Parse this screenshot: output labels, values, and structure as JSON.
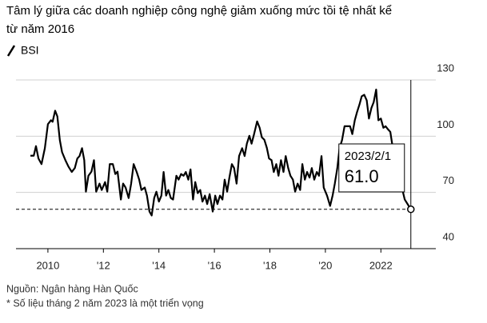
{
  "chart_data": {
    "type": "line",
    "title": [
      "Tâm lý giữa các doanh nghiệp công nghệ giảm xuống mức tồi tệ nhất kể",
      "từ năm 2016"
    ],
    "x": [
      2009.37,
      2009.49,
      2009.57,
      2009.66,
      2009.77,
      2009.89,
      2010.0,
      2010.11,
      2010.17,
      2010.26,
      2010.34,
      2010.43,
      2010.51,
      2010.63,
      2010.74,
      2010.86,
      2010.97,
      2011.06,
      2011.14,
      2011.23,
      2011.31,
      2011.37,
      2011.46,
      2011.57,
      2011.66,
      2011.74,
      2011.86,
      2011.94,
      2012.06,
      2012.14,
      2012.23,
      2012.34,
      2012.43,
      2012.51,
      2012.63,
      2012.71,
      2012.8,
      2012.91,
      2013.0,
      2013.09,
      2013.2,
      2013.29,
      2013.37,
      2013.49,
      2013.57,
      2013.66,
      2013.74,
      2013.83,
      2013.91,
      2014.0,
      2014.09,
      2014.17,
      2014.26,
      2014.34,
      2014.43,
      2014.51,
      2014.63,
      2014.71,
      2014.8,
      2014.89,
      2014.97,
      2015.06,
      2015.14,
      2015.23,
      2015.31,
      2015.4,
      2015.49,
      2015.57,
      2015.66,
      2015.74,
      2015.83,
      2015.94,
      2016.03,
      2016.11,
      2016.2,
      2016.29,
      2016.37,
      2016.46,
      2016.54,
      2016.63,
      2016.71,
      2016.8,
      2016.89,
      2017.0,
      2017.09,
      2017.17,
      2017.26,
      2017.34,
      2017.43,
      2017.54,
      2017.63,
      2017.71,
      2017.8,
      2017.89,
      2017.97,
      2018.06,
      2018.14,
      2018.23,
      2018.31,
      2018.4,
      2018.49,
      2018.57,
      2018.66,
      2018.74,
      2018.83,
      2018.91,
      2019.0,
      2019.09,
      2019.17,
      2019.26,
      2019.34,
      2019.43,
      2019.51,
      2019.6,
      2019.69,
      2019.77,
      2019.86,
      2019.94,
      2020.06,
      2020.17,
      2020.26,
      2020.34,
      2020.43,
      2020.51,
      2020.6,
      2020.69,
      2020.8,
      2020.89,
      2020.97,
      2021.06,
      2021.14,
      2021.23,
      2021.31,
      2021.4,
      2021.49,
      2021.57,
      2021.66,
      2021.74,
      2021.83,
      2021.91,
      2022.0,
      2022.09,
      2022.17,
      2022.26,
      2022.34,
      2022.43,
      2022.57,
      2022.71,
      2022.86,
      2023.08
    ],
    "series": [
      {
        "name": "BSI",
        "color": "#000000",
        "values": [
          89.6,
          89.6,
          94.7,
          88.1,
          85.1,
          93.6,
          106.4,
          108.5,
          107.7,
          113.6,
          110.6,
          97.9,
          91.5,
          87.2,
          83.8,
          80.9,
          83.0,
          88.1,
          89.4,
          93.6,
          87.2,
          70.4,
          78.9,
          81.1,
          87.2,
          70.4,
          74.7,
          71.3,
          75.5,
          70.4,
          85.1,
          85.1,
          79.8,
          81.1,
          66.2,
          74.7,
          72.6,
          67.0,
          74.7,
          85.1,
          80.9,
          76.8,
          71.3,
          72.6,
          68.3,
          59.8,
          57.7,
          67.0,
          70.4,
          65.1,
          68.3,
          80.9,
          68.3,
          71.3,
          67.0,
          66.2,
          78.9,
          76.8,
          79.8,
          78.9,
          80.9,
          76.8,
          82.3,
          66.2,
          75.5,
          69.6,
          71.3,
          65.1,
          68.3,
          63.8,
          69.1,
          59.8,
          68.3,
          63.8,
          68.3,
          66.2,
          76.8,
          70.4,
          77.9,
          85.1,
          83.0,
          74.7,
          89.4,
          93.6,
          89.4,
          96.0,
          100.2,
          96.0,
          101.1,
          107.9,
          104.5,
          99.4,
          98.1,
          93.8,
          88.1,
          87.2,
          80.9,
          85.1,
          78.9,
          87.2,
          80.9,
          89.4,
          83.0,
          78.9,
          76.8,
          70.4,
          74.7,
          71.3,
          85.1,
          76.8,
          80.9,
          77.9,
          83.0,
          76.8,
          80.9,
          78.9,
          89.4,
          72.6,
          68.3,
          62.8,
          68.3,
          74.7,
          83.0,
          93.6,
          97.9,
          105.3,
          105.3,
          105.3,
          101.1,
          108.5,
          112.8,
          117.0,
          121.3,
          122.1,
          119.1,
          109.4,
          115.1,
          118.1,
          124.9,
          108.5,
          109.4,
          104.5,
          105.3,
          103.6,
          102.3,
          93.6,
          85.1,
          75.5,
          66.2,
          61.0
        ]
      }
    ],
    "xlim": [
      2008.85,
      2023.98
    ],
    "xticks": [
      2010,
      {
        "value": 2012,
        "label": "'12"
      },
      {
        "value": 2014,
        "label": "'14"
      },
      {
        "value": 2016,
        "label": "'16"
      },
      {
        "value": 2018,
        "label": "'18"
      },
      {
        "value": 2020,
        "label": "'20"
      },
      2022
    ],
    "ylim": [
      40,
      130
    ],
    "yticks": [
      40,
      70,
      100,
      130
    ],
    "grid": true,
    "annotation": {
      "label": "2023/2/1",
      "value_label": "61.0"
    },
    "notes": [
      "Nguồn: Ngân hàng Hàn Quốc",
      "* Số liệu tháng 2 năm 2023 là một triển vọng"
    ]
  }
}
